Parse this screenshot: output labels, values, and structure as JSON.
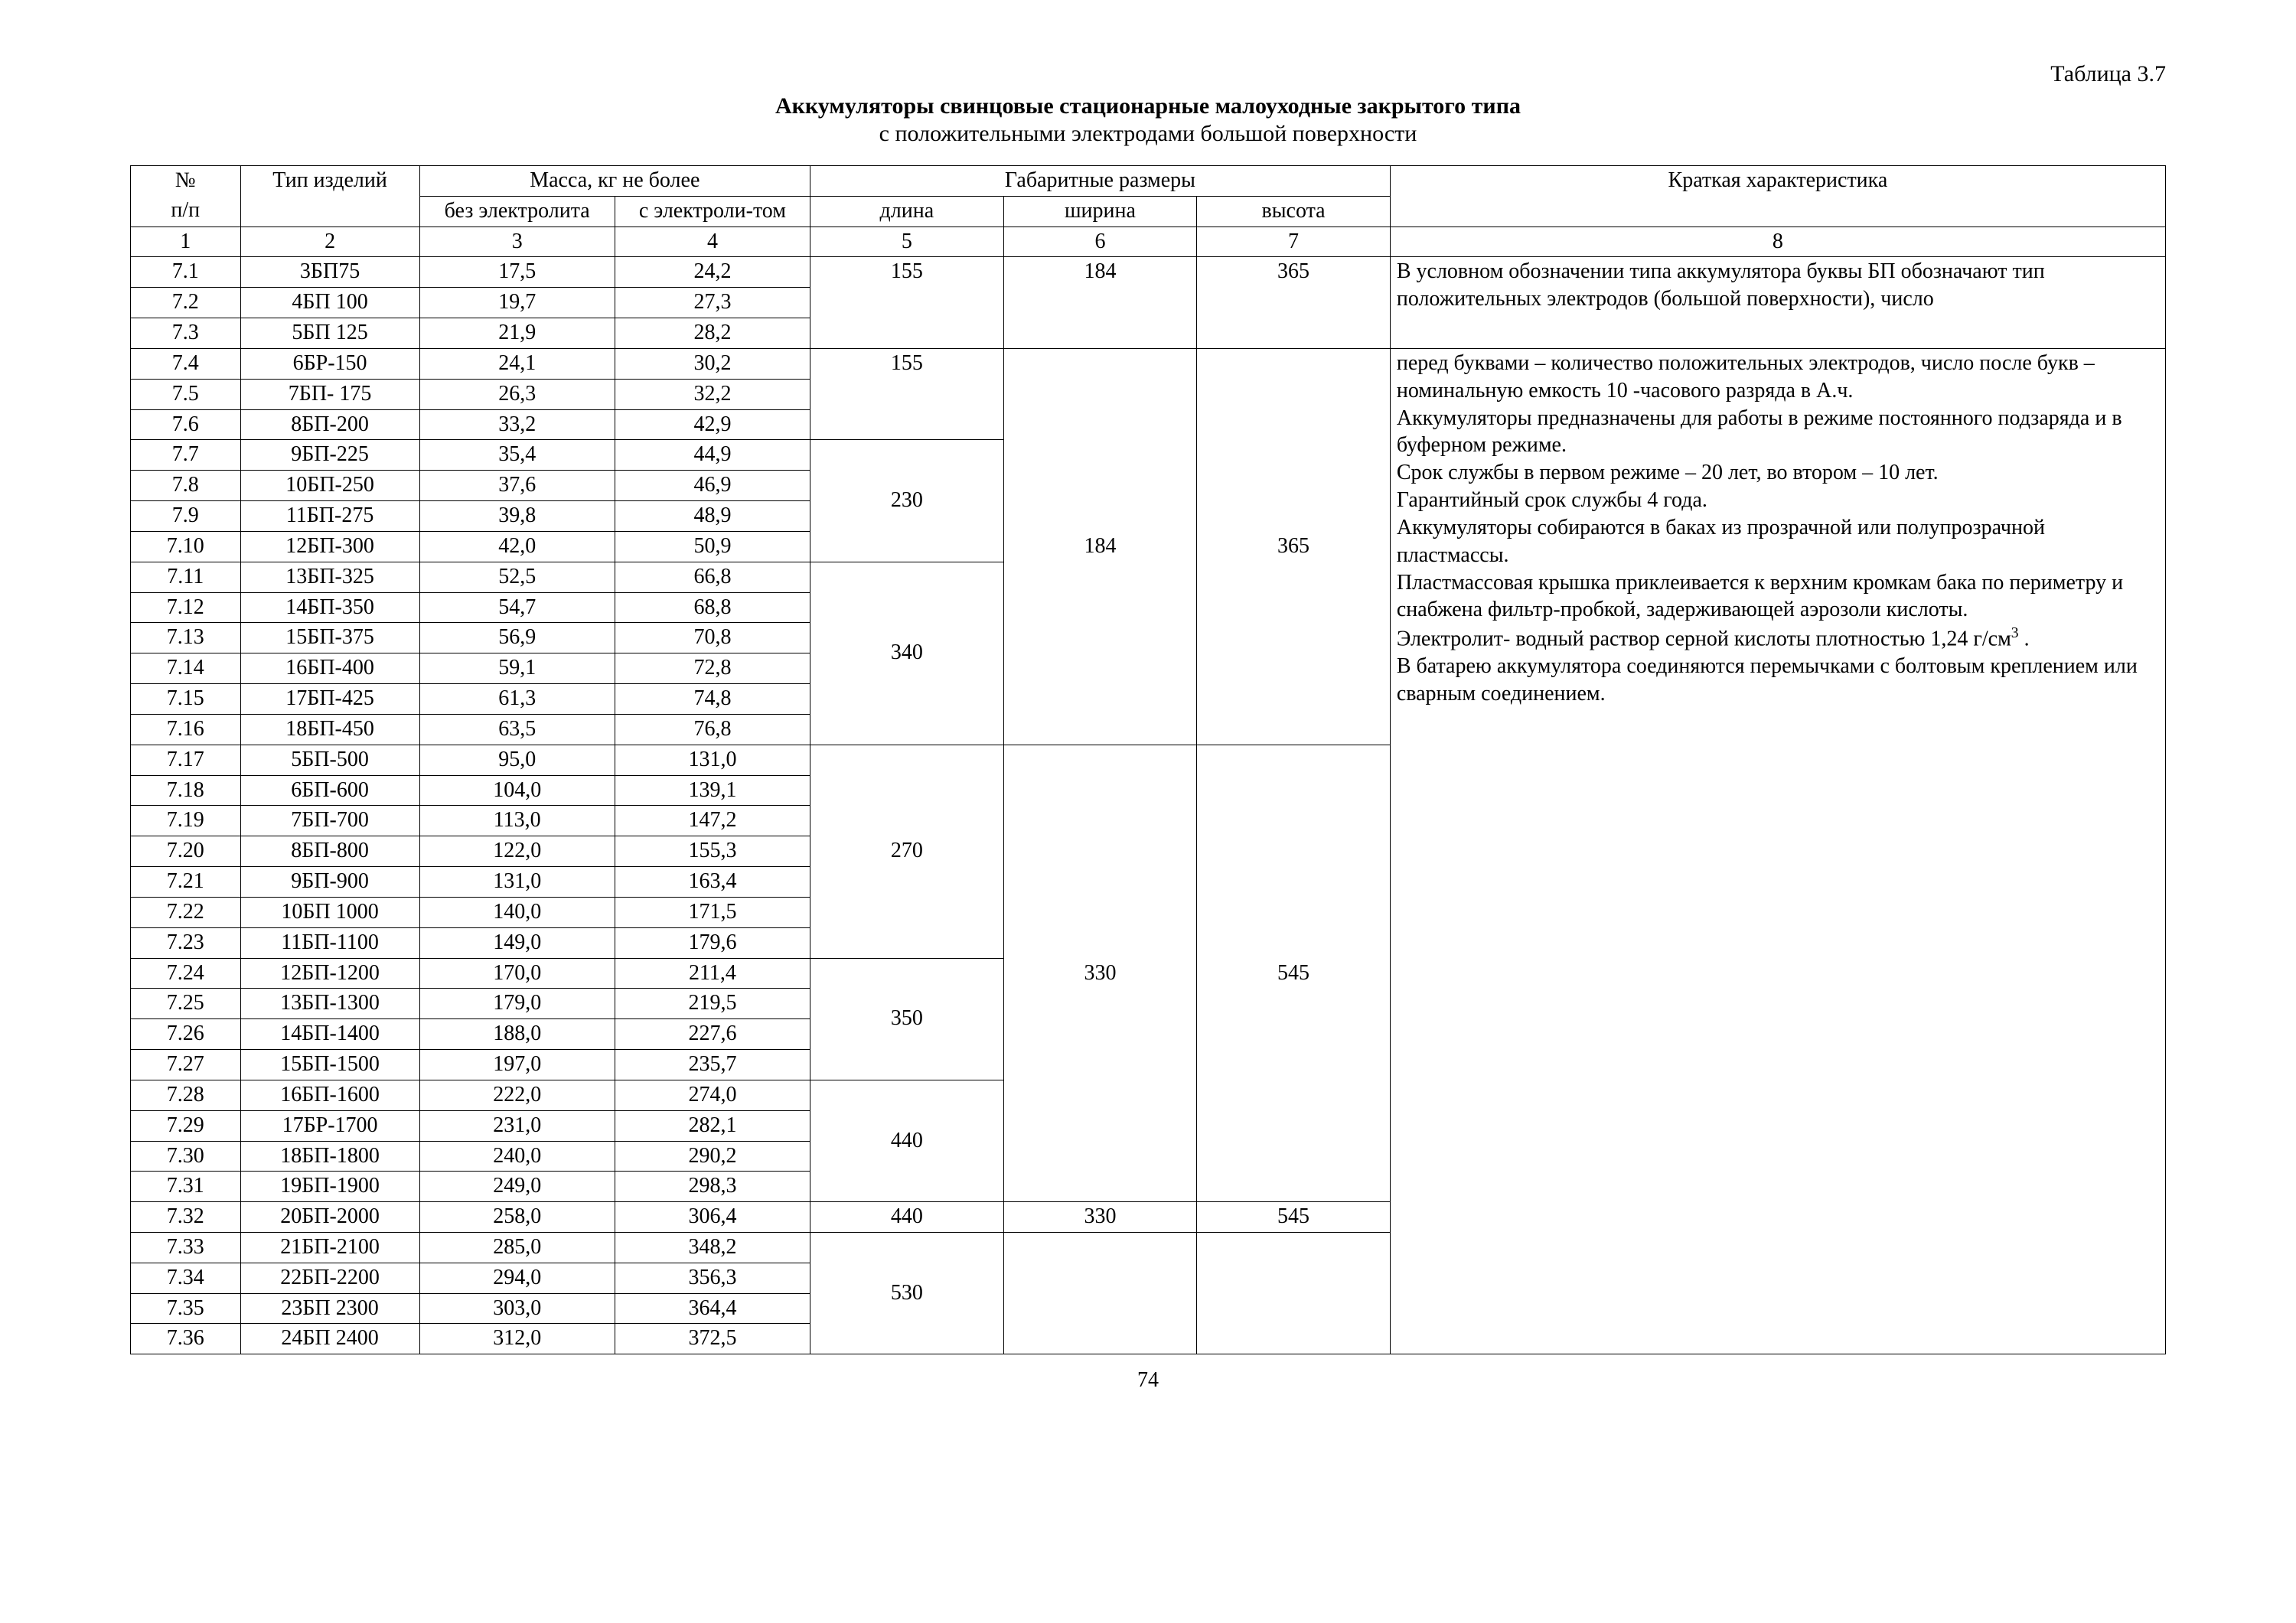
{
  "tableLabel": "Таблица 3.7",
  "titleBold": "Аккумуляторы свинцовые стационарные малоуходные закрытого типа",
  "subtitle": "с положительными электродами большой поверхности",
  "pageNumber": "74",
  "columns": {
    "col1": "№ п/п",
    "col2": "Тип изделий",
    "massGroup": "Масса, кг не более",
    "mass1": "без электролита",
    "mass2": "с электроли-том",
    "dimGroup": "Габаритные размеры",
    "dim1": "длина",
    "dim2": "ширина",
    "dim3": "высота",
    "col8": "Краткая характеристика"
  },
  "numRow": {
    "c1": "1",
    "c2": "2",
    "c3": "3",
    "c4": "4",
    "c5": "5",
    "c6": "6",
    "c7": "7",
    "c8": "8"
  },
  "widths": {
    "c1": "5.4%",
    "c2": "8.8%",
    "c3": "9.6%",
    "c4": "9.6%",
    "c5": "9.5%",
    "c6": "9.5%",
    "c7": "9.5%",
    "c8": "38.1%"
  },
  "rows": [
    {
      "n": "7.1",
      "t": "3БП75",
      "m1": "17,5",
      "m2": "24,2"
    },
    {
      "n": "7.2",
      "t": "4БП 100",
      "m1": "19,7",
      "m2": "27,3"
    },
    {
      "n": "7.3",
      "t": "5БП 125",
      "m1": "21,9",
      "m2": "28,2"
    },
    {
      "n": "7.4",
      "t": "6БР-150",
      "m1": "24,1",
      "m2": "30,2"
    },
    {
      "n": "7.5",
      "t": "7БП- 175",
      "m1": "26,3",
      "m2": "32,2"
    },
    {
      "n": "7.6",
      "t": "8БП-200",
      "m1": "33,2",
      "m2": "42,9"
    },
    {
      "n": "7.7",
      "t": "9БП-225",
      "m1": "35,4",
      "m2": "44,9"
    },
    {
      "n": "7.8",
      "t": "10БП-250",
      "m1": "37,6",
      "m2": "46,9"
    },
    {
      "n": "7.9",
      "t": "11БП-275",
      "m1": "39,8",
      "m2": "48,9"
    },
    {
      "n": "7.10",
      "t": "12БП-300",
      "m1": "42,0",
      "m2": "50,9"
    },
    {
      "n": "7.11",
      "t": "13БП-325",
      "m1": "52,5",
      "m2": "66,8"
    },
    {
      "n": "7.12",
      "t": "14БП-350",
      "m1": "54,7",
      "m2": "68,8"
    },
    {
      "n": "7.13",
      "t": "15БП-375",
      "m1": "56,9",
      "m2": "70,8"
    },
    {
      "n": "7.14",
      "t": "16БП-400",
      "m1": "59,1",
      "m2": "72,8"
    },
    {
      "n": "7.15",
      "t": "17БП-425",
      "m1": "61,3",
      "m2": "74,8"
    },
    {
      "n": "7.16",
      "t": "18БП-450",
      "m1": "63,5",
      "m2": "76,8"
    },
    {
      "n": "7.17",
      "t": "5БП-500",
      "m1": "95,0",
      "m2": "131,0"
    },
    {
      "n": "7.18",
      "t": "6БП-600",
      "m1": "104,0",
      "m2": "139,1"
    },
    {
      "n": "7.19",
      "t": "7БП-700",
      "m1": "113,0",
      "m2": "147,2"
    },
    {
      "n": "7.20",
      "t": "8БП-800",
      "m1": "122,0",
      "m2": "155,3"
    },
    {
      "n": "7.21",
      "t": "9БП-900",
      "m1": "131,0",
      "m2": "163,4"
    },
    {
      "n": "7.22",
      "t": "10БП 1000",
      "m1": "140,0",
      "m2": "171,5"
    },
    {
      "n": "7.23",
      "t": "11БП-1100",
      "m1": "149,0",
      "m2": "179,6"
    },
    {
      "n": "7.24",
      "t": "12БП-1200",
      "m1": "170,0",
      "m2": "211,4"
    },
    {
      "n": "7.25",
      "t": "13БП-1300",
      "m1": "179,0",
      "m2": "219,5"
    },
    {
      "n": "7.26",
      "t": "14БП-1400",
      "m1": "188,0",
      "m2": "227,6"
    },
    {
      "n": "7.27",
      "t": "15БП-1500",
      "m1": "197,0",
      "m2": "235,7"
    },
    {
      "n": "7.28",
      "t": "16БП-1600",
      "m1": "222,0",
      "m2": "274,0"
    },
    {
      "n": "7.29",
      "t": "17БР-1700",
      "m1": "231,0",
      "m2": "282,1"
    },
    {
      "n": "7.30",
      "t": "18БП-1800",
      "m1": "240,0",
      "m2": "290,2"
    },
    {
      "n": "7.31",
      "t": "19БП-1900",
      "m1": "249,0",
      "m2": "298,3"
    },
    {
      "n": "7.32",
      "t": "20БП-2000",
      "m1": "258,0",
      "m2": "306,4"
    },
    {
      "n": "7.33",
      "t": "21БП-2100",
      "m1": "285,0",
      "m2": "348,2"
    },
    {
      "n": "7.34",
      "t": "22БП-2200",
      "m1": "294,0",
      "m2": "356,3"
    },
    {
      "n": "7.35",
      "t": "23БП 2300",
      "m1": "303,0",
      "m2": "364,4"
    },
    {
      "n": "7.36",
      "t": "24БП 2400",
      "m1": "312,0",
      "m2": "372,5"
    }
  ],
  "merges": {
    "block1": {
      "length": "155",
      "width": "184",
      "height": "365"
    },
    "block2_len1": "155",
    "block2_len2": "230",
    "block2_len3": "340",
    "block2_width": "184",
    "block2_height": "365",
    "block3_len1": "270",
    "block3_len2": "350",
    "block3_len3": "440",
    "block3_width": "330",
    "block3_height": "545",
    "row32": {
      "length": "440",
      "width": "330",
      "height": "545"
    },
    "block4_len": "530"
  },
  "desc1": {
    "p1": "В условном обозначении типа аккумулятора буквы БП обозначают тип положительных электродов (большой поверхности), число"
  },
  "desc2": {
    "p1": "перед буквами – количество положительных электродов, число после букв – номинальную емкость 10 -часового разряда в А.ч.",
    "p2": "Аккумуляторы предназначены для работы в режиме постоянного подзаряда и в буферном режиме.",
    "p3": "Срок службы в первом режиме – 20 лет, во втором – 10 лет.",
    "p4": "Гарантийный срок службы 4 года.",
    "p5": "Аккумуляторы собираются в баках из прозрачной или полупрозрачной пластмассы.",
    "p6": "Пластмассовая крышка приклеивается к верхним кромкам бака по периметру и снабжена фильтр-пробкой, задерживающей аэрозоли кислоты.",
    "p7a": "Электролит- водный раствор серной кислоты плотностью 1,24 г/см",
    "p7sup": "3",
    "p7b": " .",
    "p8": "В батарею аккумулятора соединяются перемычками с болтовым креплением или сварным соединением."
  }
}
